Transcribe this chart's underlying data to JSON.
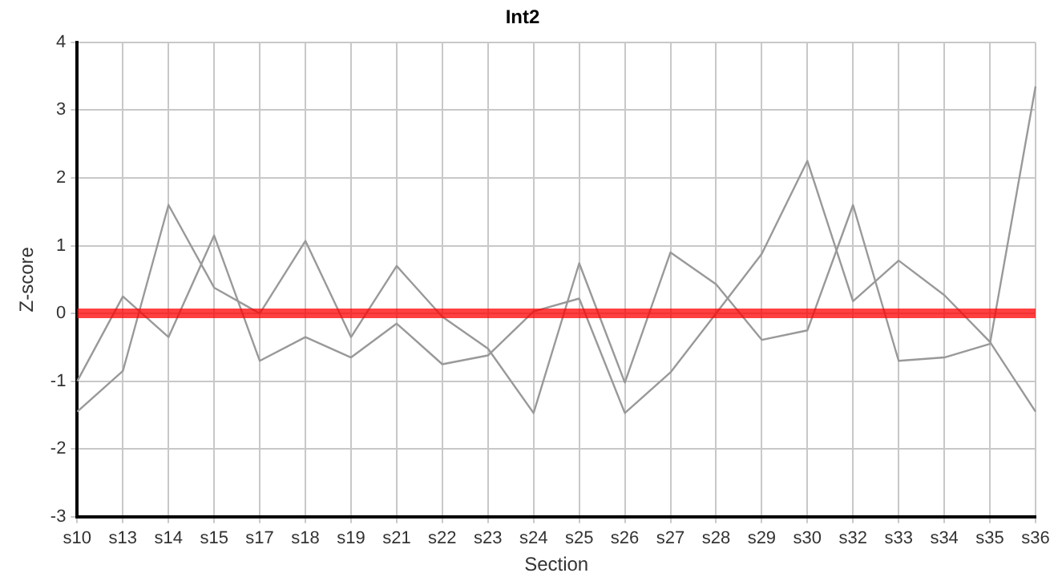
{
  "chart_data": {
    "type": "line",
    "title": "Int2",
    "xlabel": "Section",
    "ylabel": "Z-score",
    "categories": [
      "s10",
      "s13",
      "s14",
      "s15",
      "s17",
      "s18",
      "s19",
      "s21",
      "s22",
      "s23",
      "s24",
      "s25",
      "s26",
      "s27",
      "s28",
      "s29",
      "s30",
      "s32",
      "s33",
      "s34",
      "s35",
      "s36"
    ],
    "series": [
      {
        "color": "#999999",
        "values": [
          -1.0,
          0.25,
          -0.35,
          1.15,
          -0.7,
          -0.35,
          -0.65,
          -0.15,
          -0.75,
          -0.62,
          0.03,
          0.22,
          -1.47,
          -0.87,
          0.0,
          0.88,
          2.25,
          0.18,
          0.78,
          0.27,
          -0.42,
          -1.45
        ]
      },
      {
        "color": "#999999",
        "values": [
          -1.45,
          -0.85,
          1.6,
          0.38,
          0.0,
          1.07,
          -0.35,
          0.7,
          -0.05,
          -0.52,
          -1.47,
          0.74,
          -1.02,
          0.9,
          0.43,
          -0.39,
          -0.25,
          1.6,
          -0.7,
          -0.65,
          -0.45,
          3.35
        ]
      }
    ],
    "ylim": [
      -3,
      4
    ],
    "yticks": [
      -3,
      -2,
      -1,
      0,
      1,
      2,
      3,
      4
    ],
    "grid": true,
    "legend": false,
    "marker": "none",
    "line_style": "solid",
    "ref_lines": [
      {
        "axis": "y",
        "value": 0,
        "color": "#ff0000"
      }
    ]
  }
}
